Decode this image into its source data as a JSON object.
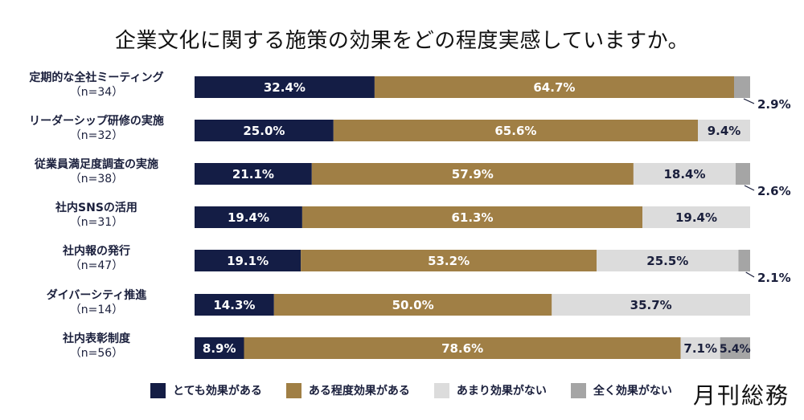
{
  "title": "企業文化に関する施策の効果をどの程度実感していますか。",
  "logo": "月刊総務",
  "colors": {
    "very_effective": "#141d45",
    "somewhat_effective": "#a07f45",
    "not_very_effective": "#dcdcdc",
    "not_effective": "#a5a5a5"
  },
  "legend": [
    {
      "label": "とても効果がある",
      "color": "#141d45"
    },
    {
      "label": "ある程度効果がある",
      "color": "#a07f45"
    },
    {
      "label": "あまり効果がない",
      "color": "#dcdcdc"
    },
    {
      "label": "全く効果がない",
      "color": "#a5a5a5"
    }
  ],
  "chart_data": {
    "type": "bar",
    "orientation": "horizontal",
    "stacked": true,
    "normalized": "100%",
    "title": "企業文化に関する施策の効果をどの程度実感していますか。",
    "xlabel": "",
    "ylabel": "",
    "xlim": [
      0,
      100
    ],
    "grid": false,
    "legend_position": "bottom",
    "categories": [
      {
        "name": "定期的な全社ミーティング",
        "n": "（n=34）"
      },
      {
        "name": "リーダーシップ研修の実施",
        "n": "（n=32）"
      },
      {
        "name": "従業員満足度調査の実施",
        "n": "（n=38）"
      },
      {
        "name": "社内SNSの活用",
        "n": "（n=31）"
      },
      {
        "name": "社内報の発行",
        "n": "（n=47）"
      },
      {
        "name": "ダイバーシティ推進",
        "n": "（n=14）"
      },
      {
        "name": "社内表彰制度",
        "n": "（n=56）"
      }
    ],
    "series": [
      {
        "name": "とても効果がある",
        "values": [
          32.4,
          25.0,
          21.1,
          19.4,
          19.1,
          14.3,
          8.9
        ]
      },
      {
        "name": "ある程度効果がある",
        "values": [
          64.7,
          65.6,
          57.9,
          61.3,
          53.2,
          50.0,
          78.6
        ]
      },
      {
        "name": "あまり効果がない",
        "values": [
          0,
          9.4,
          18.4,
          19.4,
          25.5,
          35.7,
          7.1
        ]
      },
      {
        "name": "全く効果がない",
        "values": [
          2.9,
          0,
          2.6,
          0,
          2.1,
          0,
          5.4
        ]
      }
    ],
    "data_labels": [
      [
        "32.4%",
        "64.7%",
        null,
        "2.9%"
      ],
      [
        "25.0%",
        "65.6%",
        "9.4%",
        null
      ],
      [
        "21.1%",
        "57.9%",
        "18.4%",
        "2.6%"
      ],
      [
        "19.4%",
        "61.3%",
        "19.4%",
        null
      ],
      [
        "19.1%",
        "53.2%",
        "25.5%",
        "2.1%"
      ],
      [
        "14.3%",
        "50.0%",
        "35.7%",
        null
      ],
      [
        "8.9%",
        "78.6%",
        "7.1%",
        "5.4%"
      ]
    ],
    "callout_labels": [
      true,
      false,
      true,
      false,
      true,
      false,
      false
    ]
  }
}
